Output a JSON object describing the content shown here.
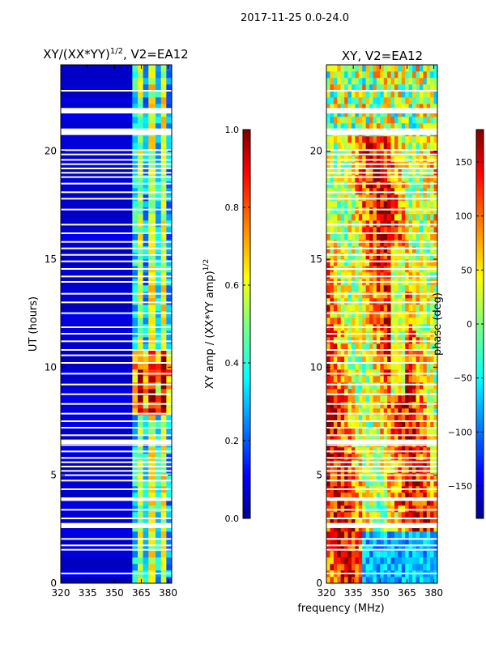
{
  "figure": {
    "suptitle": "2017-11-25 0.0-24.0",
    "xlabel": "frequency (MHz)"
  },
  "colors": {
    "background_low": "#00008f",
    "gap": "#ffffff",
    "frame": "#000000"
  },
  "chart_data": [
    {
      "type": "heatmap",
      "title": "XY/(XX*YY)^1/2, V2=EA12",
      "title_main": "XY/(XX*YY)",
      "title_exp": "1/2",
      "title_rest": ", V2=EA12",
      "ylabel": "UT (hours)",
      "x_range": [
        320,
        382
      ],
      "y_range": [
        0,
        24
      ],
      "x_ticks": [
        320,
        335,
        350,
        365,
        380
      ],
      "y_ticks": [
        0,
        5,
        10,
        15,
        20
      ],
      "colorbar": {
        "label": "XY amp / (XX*YY amp)^1/2",
        "label_main": "XY amp / (XX*YY amp)",
        "label_exp": "1/2",
        "range": [
          0.0,
          1.0
        ],
        "ticks": [
          "0.0",
          "0.2",
          "0.4",
          "0.6",
          "0.8",
          "1.0"
        ],
        "tick_values": [
          0.0,
          0.2,
          0.4,
          0.6,
          0.8,
          1.0
        ]
      },
      "bands": [
        {
          "freq": [
            320,
            360
          ],
          "amp": 0.05
        },
        {
          "freq": [
            360,
            363
          ],
          "amp": 0.35
        },
        {
          "freq": [
            363,
            366
          ],
          "amp": 0.55
        },
        {
          "freq": [
            366,
            369
          ],
          "amp": 0.3
        },
        {
          "freq": [
            369,
            373
          ],
          "amp": 0.6
        },
        {
          "freq": [
            373,
            376
          ],
          "amp": 0.35
        },
        {
          "freq": [
            376,
            379
          ],
          "amp": 0.6
        },
        {
          "freq": [
            379,
            382
          ],
          "amp": 0.3
        }
      ],
      "high_amp_interval_hours": [
        7.5,
        10.7
      ]
    },
    {
      "type": "heatmap",
      "title": "XY, V2=EA12",
      "x_range": [
        320,
        382
      ],
      "y_range": [
        0,
        24
      ],
      "x_ticks": [
        320,
        335,
        350,
        365,
        380
      ],
      "y_ticks": [
        0,
        5,
        10,
        15,
        20
      ],
      "colorbar": {
        "label": "phase (deg)",
        "range": [
          -180,
          180
        ],
        "ticks": [
          "150",
          "100",
          "50",
          "0",
          "−50",
          "−100",
          "−150"
        ],
        "tick_values": [
          150,
          100,
          50,
          0,
          -50,
          -100,
          -150
        ]
      }
    }
  ],
  "data_gaps_hours": [
    0.45,
    1.55,
    1.75,
    2.05,
    2.6,
    2.75,
    3.0,
    3.4,
    3.85,
    4.35,
    4.75,
    5.0,
    5.2,
    5.4,
    5.6,
    5.8,
    6.1,
    6.4,
    6.55,
    6.85,
    7.2,
    7.5,
    7.85,
    8.3,
    8.75,
    9.2,
    9.7,
    10.2,
    10.55,
    10.8,
    11.2,
    11.55,
    11.85,
    12.5,
    13.0,
    13.4,
    13.95,
    14.2,
    14.55,
    14.9,
    15.2,
    15.5,
    15.8,
    16.2,
    16.6,
    17.3,
    17.8,
    18.1,
    18.5,
    18.8,
    19.0,
    19.2,
    19.4,
    19.6,
    19.85,
    20.05,
    20.8,
    21.0,
    21.9,
    22.8
  ],
  "wide_gaps_hours": [
    [
      2.55,
      2.75
    ],
    [
      3.82,
      3.97
    ],
    [
      6.45,
      6.65
    ],
    [
      20.75,
      21.05
    ],
    [
      21.75,
      22.0
    ]
  ]
}
